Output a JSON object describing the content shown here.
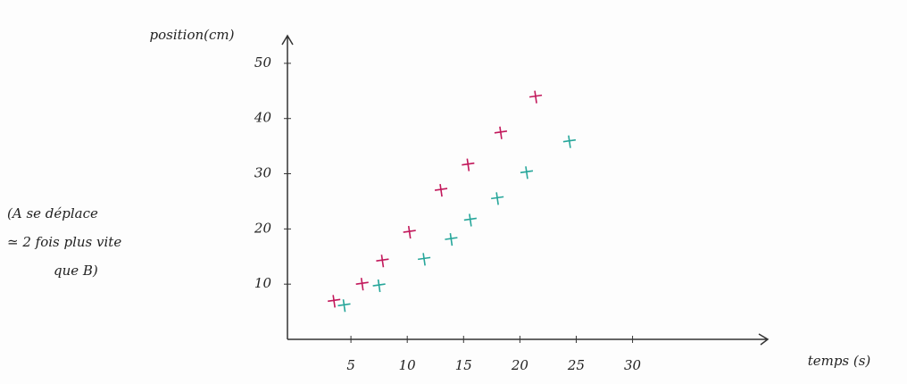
{
  "chart_data": {
    "type": "scatter",
    "y_label": "position(cm)",
    "x_label": "temps (s)",
    "annotation": [
      "(A se déplace",
      "≃ 2 fois plus vite",
      "que B)"
    ],
    "series": [
      {
        "color": "#c2185b",
        "x": [
          3.5,
          6,
          7.8,
          10.2,
          13,
          15.4,
          18.3,
          21.4
        ],
        "values": [
          6.9,
          10,
          14.2,
          19.4,
          27,
          31.6,
          37.4,
          43.9
        ]
      },
      {
        "color": "#26a69a",
        "x": [
          4.4,
          7.5,
          11.5,
          13.9,
          15.6,
          18,
          20.6,
          24.4
        ],
        "values": [
          6.1,
          9.7,
          14.5,
          18.1,
          21.6,
          25.5,
          30.2,
          35.8
        ]
      }
    ],
    "xlim": [
      0,
      42
    ],
    "ylim": [
      0,
      55
    ],
    "xticks": [
      5,
      10,
      15,
      20,
      25,
      30
    ],
    "yticks": [
      10,
      20,
      30,
      40,
      50
    ]
  }
}
